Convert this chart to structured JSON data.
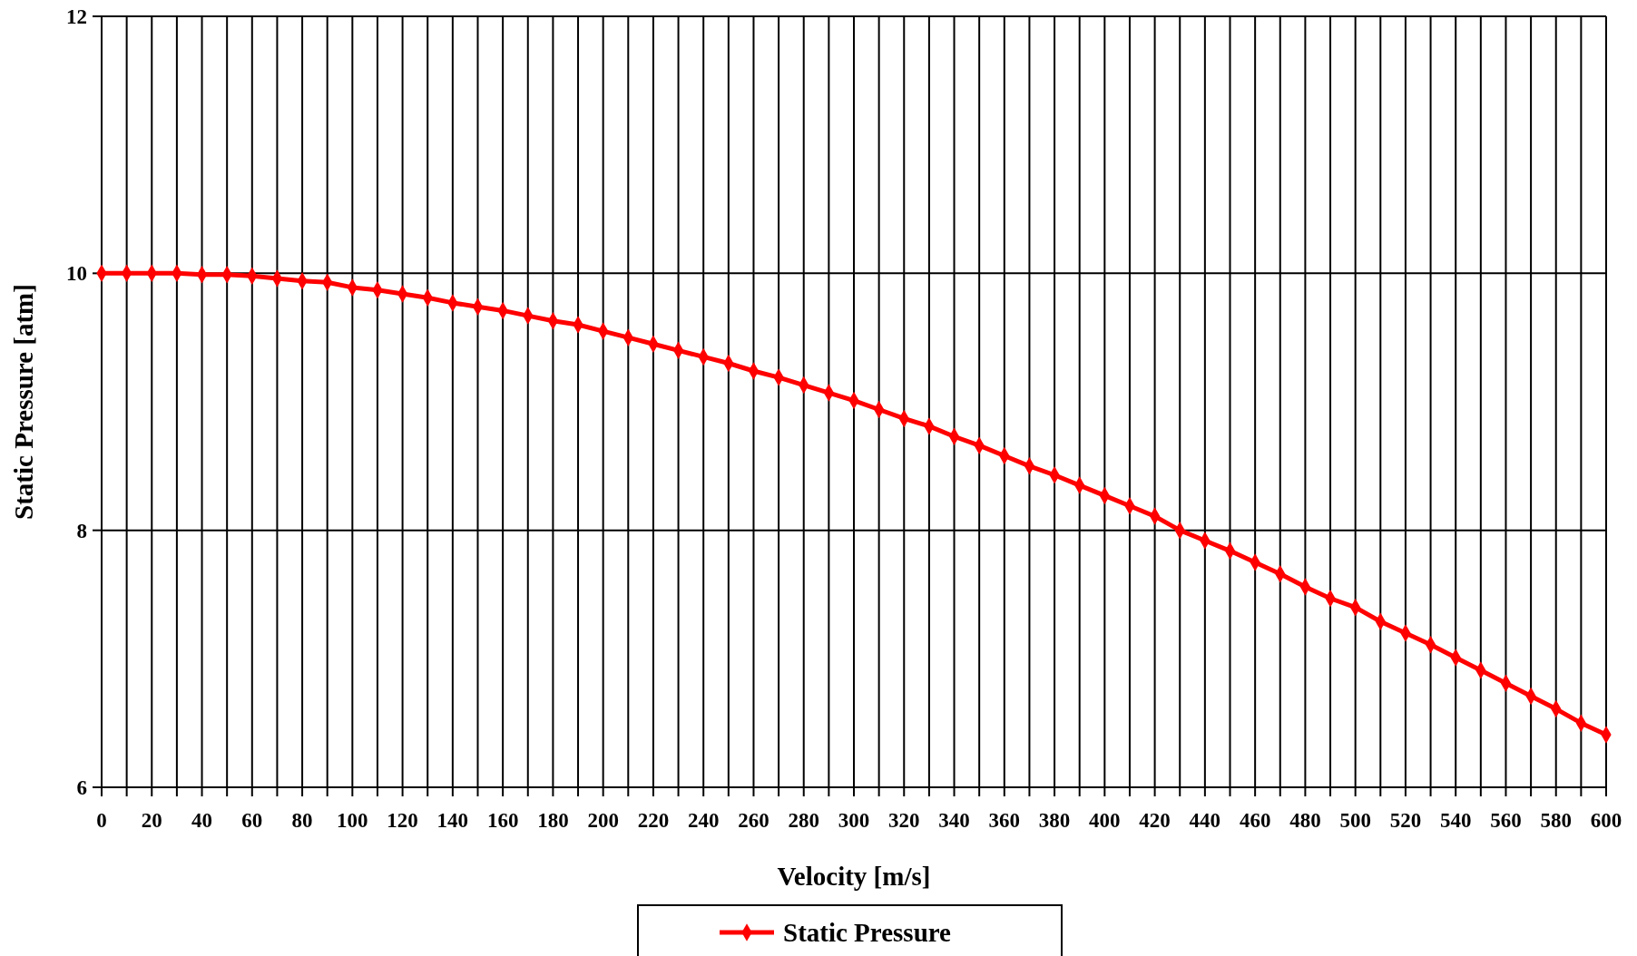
{
  "chart_data": {
    "type": "line",
    "xlabel": "Velocity [m/s]",
    "ylabel": "Static Pressure [atm]",
    "x": [
      0,
      10,
      20,
      30,
      40,
      50,
      60,
      70,
      80,
      90,
      100,
      110,
      120,
      130,
      140,
      150,
      160,
      170,
      180,
      190,
      200,
      210,
      220,
      230,
      240,
      250,
      260,
      270,
      280,
      290,
      300,
      310,
      320,
      330,
      340,
      350,
      360,
      370,
      380,
      390,
      400,
      410,
      420,
      430,
      440,
      450,
      460,
      470,
      480,
      490,
      500,
      510,
      520,
      530,
      540,
      550,
      560,
      570,
      580,
      590,
      600
    ],
    "series": [
      {
        "name": "Static Pressure",
        "color": "#ff0000",
        "values": [
          10,
          10,
          10,
          10,
          9.99,
          9.99,
          9.98,
          9.96,
          9.94,
          9.93,
          9.89,
          9.87,
          9.84,
          9.81,
          9.77,
          9.74,
          9.71,
          9.67,
          9.63,
          9.6,
          9.55,
          9.5,
          9.45,
          9.4,
          9.35,
          9.3,
          9.24,
          9.19,
          9.13,
          9.07,
          9.01,
          8.94,
          8.87,
          8.81,
          8.73,
          8.66,
          8.58,
          8.5,
          8.43,
          8.35,
          8.27,
          8.19,
          8.11,
          8.0,
          7.92,
          7.84,
          7.75,
          7.66,
          7.56,
          7.47,
          7.4,
          7.29,
          7.2,
          7.11,
          7.01,
          6.91,
          6.81,
          6.71,
          6.61,
          6.5,
          6.41
        ]
      }
    ],
    "xlim": [
      0,
      600
    ],
    "xticks": [
      0,
      {
        "value": 10,
        "label": null
      },
      20,
      {
        "value": 30,
        "label": null
      },
      40,
      {
        "value": 50,
        "label": null
      },
      60,
      {
        "value": 70,
        "label": null
      },
      80,
      {
        "value": 90,
        "label": null
      },
      100,
      {
        "value": 110,
        "label": null
      },
      120,
      {
        "value": 130,
        "label": null
      },
      140,
      {
        "value": 150,
        "label": null
      },
      160,
      {
        "value": 170,
        "label": null
      },
      180,
      {
        "value": 190,
        "label": null
      },
      200,
      {
        "value": 210,
        "label": null
      },
      220,
      {
        "value": 230,
        "label": null
      },
      240,
      {
        "value": 250,
        "label": null
      },
      260,
      {
        "value": 270,
        "label": null
      },
      280,
      {
        "value": 290,
        "label": null
      },
      300,
      {
        "value": 310,
        "label": null
      },
      320,
      {
        "value": 330,
        "label": null
      },
      340,
      {
        "value": 350,
        "label": null
      },
      360,
      {
        "value": 370,
        "label": null
      },
      380,
      {
        "value": 390,
        "label": null
      },
      400,
      {
        "value": 410,
        "label": null
      },
      420,
      {
        "value": 430,
        "label": null
      },
      440,
      {
        "value": 450,
        "label": null
      },
      460,
      {
        "value": 470,
        "label": null
      },
      480,
      {
        "value": 490,
        "label": null
      },
      500,
      {
        "value": 510,
        "label": null
      },
      520,
      {
        "value": 530,
        "label": null
      },
      540,
      {
        "value": 550,
        "label": null
      },
      560,
      {
        "value": 570,
        "label": null
      },
      580,
      {
        "value": 590,
        "label": null
      },
      600
    ],
    "ylim": [
      6,
      12
    ],
    "yticks": [
      6,
      8,
      10,
      12
    ],
    "grid": true,
    "legend": "bottom",
    "marker": "diamond",
    "line_style": "solid"
  }
}
